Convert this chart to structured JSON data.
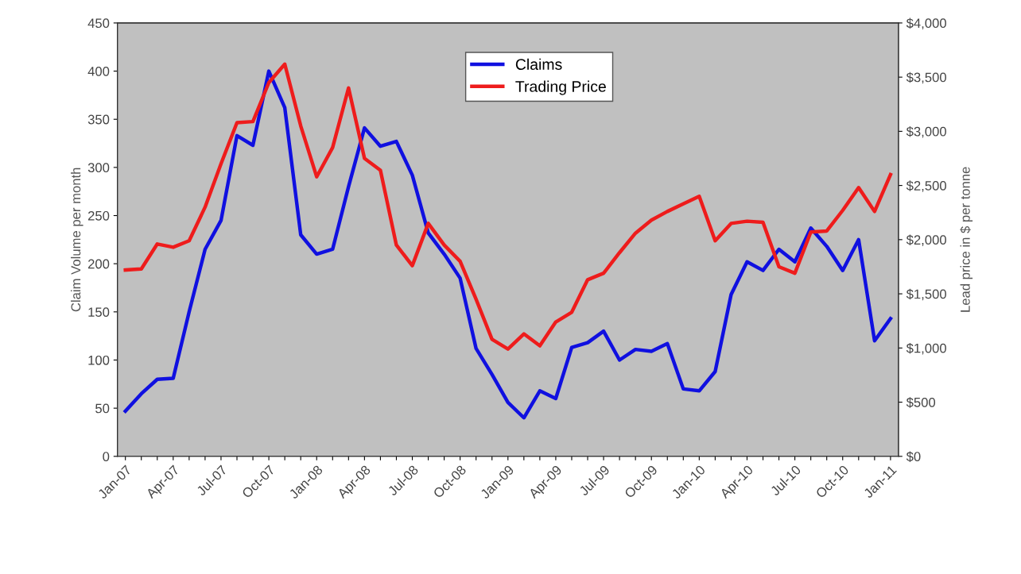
{
  "chart_data": {
    "type": "line",
    "categories": [
      "Jan-07",
      null,
      null,
      "Apr-07",
      null,
      null,
      "Jul-07",
      null,
      null,
      "Oct-07",
      null,
      null,
      "Jan-08",
      null,
      null,
      "Apr-08",
      null,
      null,
      "Jul-08",
      null,
      null,
      "Oct-08",
      null,
      null,
      "Jan-09",
      null,
      null,
      "Apr-09",
      null,
      null,
      "Jul-09",
      null,
      null,
      "Oct-09",
      null,
      null,
      "Jan-10",
      null,
      null,
      "Apr-10",
      null,
      null,
      "Jul-10",
      null,
      null,
      "Oct-10",
      null,
      null,
      "Jan-11"
    ],
    "series": [
      {
        "name": "Claims",
        "color": "#1010e0",
        "values": [
          47,
          65,
          80,
          81,
          150,
          215,
          245,
          333,
          323,
          400,
          362,
          230,
          210,
          215,
          280,
          341,
          322,
          327,
          292,
          232,
          210,
          185,
          112,
          85,
          56,
          40,
          68,
          60,
          113,
          118,
          130,
          100,
          111,
          109,
          117,
          70,
          68,
          88,
          168,
          202,
          193,
          215,
          202,
          237,
          218,
          193,
          225,
          120,
          143
        ]
      },
      {
        "name": "Trading Price",
        "color": "#ee1c1c",
        "axis": "y2",
        "values": [
          1720,
          1730,
          1960,
          1930,
          1990,
          2300,
          2700,
          3080,
          3090,
          3450,
          3620,
          3050,
          2580,
          2850,
          3400,
          2750,
          2640,
          1950,
          1760,
          2150,
          1950,
          1800,
          1450,
          1080,
          990,
          1130,
          1020,
          1240,
          1330,
          1630,
          1690,
          1880,
          2060,
          2180,
          2260,
          2330,
          2400,
          1990,
          2150,
          2170,
          2160,
          1750,
          1690,
          2070,
          2080,
          2270,
          2480,
          2260,
          2600
        ]
      }
    ],
    "ylabel": "Claim Volume per month",
    "y2label": "Lead price in $ per tonne",
    "ylim": [
      0,
      450
    ],
    "yticks": [
      0,
      50,
      100,
      150,
      200,
      250,
      300,
      350,
      400,
      450
    ],
    "y2lim": [
      0,
      4000
    ],
    "y2ticks": [
      {
        "value": 0,
        "label": "$0"
      },
      {
        "value": 500,
        "label": "$500"
      },
      {
        "value": 1000,
        "label": "$1,000"
      },
      {
        "value": 1500,
        "label": "$1,500"
      },
      {
        "value": 2000,
        "label": "$2,000"
      },
      {
        "value": 2500,
        "label": "$2,500"
      },
      {
        "value": 3000,
        "label": "$3,000"
      },
      {
        "value": 3500,
        "label": "$3,500"
      },
      {
        "value": 4000,
        "label": "$4,000"
      }
    ],
    "legend": "top",
    "grid": false,
    "marker": "none",
    "line_style": "solid"
  }
}
